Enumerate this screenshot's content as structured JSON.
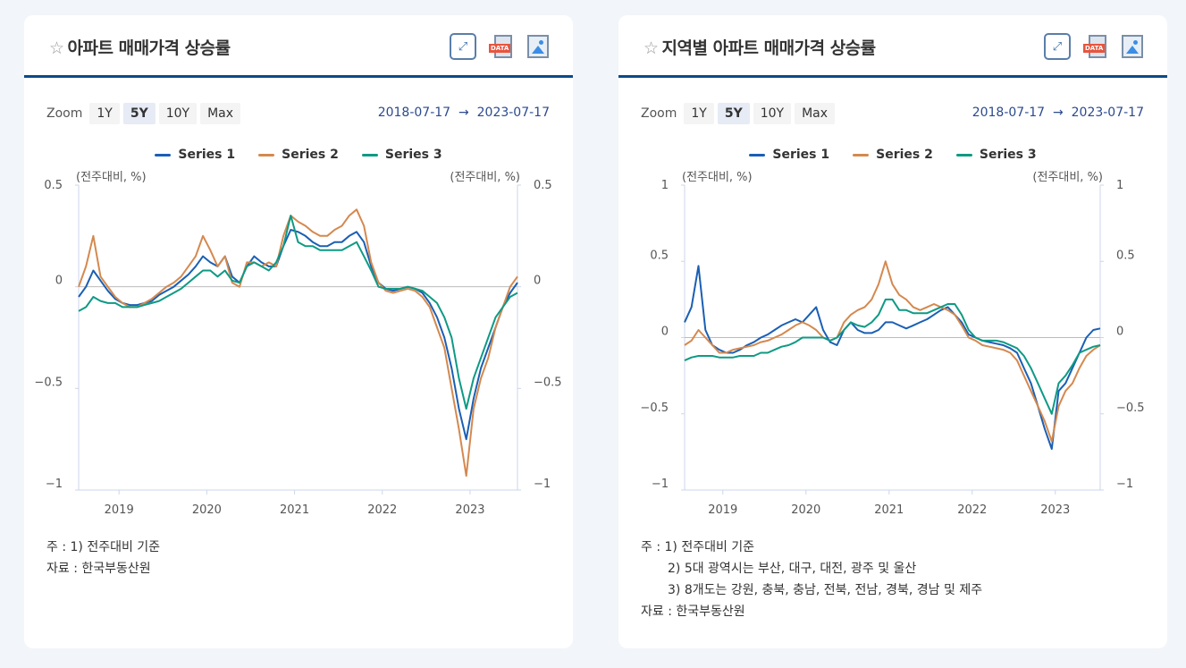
{
  "colors": {
    "series1": "#1a5fb4",
    "series2": "#d4894f",
    "series3": "#0e9a84",
    "accent": "#0b4a8a"
  },
  "zoom_label": "Zoom",
  "zoom_options": [
    "1Y",
    "5Y",
    "10Y",
    "Max"
  ],
  "zoom_selected": "5Y",
  "range_from": "2018-07-17",
  "range_arrow": "→",
  "range_to": "2023-07-17",
  "icons": [
    "star-icon",
    "fullscreen-icon",
    "data-download-icon",
    "image-download-icon"
  ],
  "charts": [
    {
      "title": "아파트 매매가격 상승률",
      "notes": [
        "주 : 1)  전주대비 기준"
      ],
      "source": "자료 :  한국부동산원",
      "chart_data": {
        "type": "line",
        "start": "2018-07",
        "freq": "monthly",
        "ylim": [
          -1,
          0.5
        ],
        "yticks": [
          0.5,
          0,
          -0.5,
          -1
        ],
        "ytick_labels": [
          "0.5",
          "0",
          "−0.5",
          "−1"
        ],
        "xticks": [
          "2019",
          "2020",
          "2021",
          "2022",
          "2023"
        ],
        "ylabel_left": "(전주대비, %)",
        "ylabel_right": "(전주대비, %)",
        "grid": "zero-line",
        "legend": "top-center",
        "series": [
          {
            "name": "Series 1",
            "values": [
              -0.05,
              0,
              0.08,
              0.03,
              -0.02,
              -0.06,
              -0.08,
              -0.09,
              -0.09,
              -0.08,
              -0.07,
              -0.04,
              -0.02,
              0,
              0.03,
              0.06,
              0.1,
              0.15,
              0.12,
              0.1,
              0.15,
              0.05,
              0.02,
              0.1,
              0.15,
              0.12,
              0.1,
              0.1,
              0.2,
              0.28,
              0.27,
              0.25,
              0.22,
              0.2,
              0.2,
              0.22,
              0.22,
              0.25,
              0.27,
              0.22,
              0.1,
              0.02,
              -0.01,
              -0.02,
              -0.01,
              0,
              -0.01,
              -0.03,
              -0.08,
              -0.15,
              -0.25,
              -0.4,
              -0.6,
              -0.75,
              -0.55,
              -0.4,
              -0.3,
              -0.2,
              -0.1,
              -0.03,
              0.02
            ]
          },
          {
            "name": "Series 2",
            "values": [
              0,
              0.1,
              0.25,
              0.05,
              0,
              -0.05,
              -0.08,
              -0.1,
              -0.1,
              -0.08,
              -0.06,
              -0.03,
              0,
              0.02,
              0.05,
              0.1,
              0.15,
              0.25,
              0.18,
              0.1,
              0.15,
              0.02,
              0,
              0.12,
              0.12,
              0.1,
              0.12,
              0.1,
              0.25,
              0.35,
              0.32,
              0.3,
              0.27,
              0.25,
              0.25,
              0.28,
              0.3,
              0.35,
              0.38,
              0.3,
              0.12,
              0.02,
              -0.02,
              -0.03,
              -0.02,
              -0.01,
              -0.02,
              -0.05,
              -0.1,
              -0.2,
              -0.3,
              -0.5,
              -0.7,
              -0.93,
              -0.6,
              -0.45,
              -0.35,
              -0.2,
              -0.1,
              0,
              0.05
            ]
          },
          {
            "name": "Series 3",
            "values": [
              -0.12,
              -0.1,
              -0.05,
              -0.07,
              -0.08,
              -0.08,
              -0.1,
              -0.1,
              -0.1,
              -0.09,
              -0.08,
              -0.07,
              -0.05,
              -0.03,
              -0.01,
              0.02,
              0.05,
              0.08,
              0.08,
              0.05,
              0.08,
              0.03,
              0.02,
              0.1,
              0.12,
              0.1,
              0.08,
              0.12,
              0.2,
              0.35,
              0.22,
              0.2,
              0.2,
              0.18,
              0.18,
              0.18,
              0.18,
              0.2,
              0.22,
              0.15,
              0.08,
              0,
              -0.01,
              -0.01,
              -0.01,
              0,
              -0.01,
              -0.02,
              -0.05,
              -0.08,
              -0.15,
              -0.25,
              -0.45,
              -0.6,
              -0.45,
              -0.35,
              -0.25,
              -0.15,
              -0.1,
              -0.05,
              -0.03
            ]
          }
        ]
      }
    },
    {
      "title": "지역별 아파트 매매가격 상승률",
      "notes": [
        "주 : 1)  전주대비 기준",
        "2)  5대 광역시는 부산, 대구, 대전, 광주 및 울산",
        "3)  8개도는 강원, 충북, 충남, 전북, 전남, 경북, 경남 및 제주"
      ],
      "source": "자료 :  한국부동산원",
      "chart_data": {
        "type": "line",
        "start": "2018-07",
        "freq": "monthly",
        "ylim": [
          -1,
          1
        ],
        "yticks": [
          1,
          0.5,
          0,
          -0.5,
          -1
        ],
        "ytick_labels": [
          "1",
          "0.5",
          "0",
          "−0.5",
          "−1"
        ],
        "xticks": [
          "2019",
          "2020",
          "2021",
          "2022",
          "2023"
        ],
        "ylabel_left": "(전주대비, %)",
        "ylabel_right": "(전주대비, %)",
        "grid": "zero-line",
        "legend": "top-center",
        "series": [
          {
            "name": "Series 1",
            "values": [
              0.1,
              0.2,
              0.47,
              0.05,
              -0.05,
              -0.08,
              -0.1,
              -0.1,
              -0.08,
              -0.05,
              -0.03,
              0,
              0.02,
              0.05,
              0.08,
              0.1,
              0.12,
              0.1,
              0.15,
              0.2,
              0.05,
              -0.03,
              -0.05,
              0.05,
              0.1,
              0.05,
              0.03,
              0.03,
              0.05,
              0.1,
              0.1,
              0.08,
              0.06,
              0.08,
              0.1,
              0.12,
              0.15,
              0.18,
              0.2,
              0.15,
              0.1,
              0.02,
              0,
              -0.02,
              -0.03,
              -0.04,
              -0.05,
              -0.07,
              -0.1,
              -0.2,
              -0.3,
              -0.45,
              -0.6,
              -0.73,
              -0.35,
              -0.3,
              -0.2,
              -0.1,
              0,
              0.05,
              0.06
            ]
          },
          {
            "name": "Series 2",
            "values": [
              -0.05,
              -0.02,
              0.05,
              0,
              -0.05,
              -0.1,
              -0.1,
              -0.08,
              -0.07,
              -0.06,
              -0.05,
              -0.03,
              -0.02,
              0,
              0.02,
              0.05,
              0.08,
              0.1,
              0.08,
              0.05,
              0,
              -0.02,
              0,
              0.1,
              0.15,
              0.18,
              0.2,
              0.25,
              0.35,
              0.5,
              0.35,
              0.28,
              0.25,
              0.2,
              0.18,
              0.2,
              0.22,
              0.2,
              0.18,
              0.15,
              0.08,
              0,
              -0.02,
              -0.05,
              -0.06,
              -0.07,
              -0.08,
              -0.1,
              -0.15,
              -0.25,
              -0.35,
              -0.45,
              -0.55,
              -0.68,
              -0.45,
              -0.35,
              -0.3,
              -0.2,
              -0.12,
              -0.08,
              -0.05
            ]
          },
          {
            "name": "Series 3",
            "values": [
              -0.15,
              -0.13,
              -0.12,
              -0.12,
              -0.12,
              -0.13,
              -0.13,
              -0.13,
              -0.12,
              -0.12,
              -0.12,
              -0.1,
              -0.1,
              -0.08,
              -0.06,
              -0.05,
              -0.03,
              0,
              0,
              0,
              0,
              -0.02,
              0,
              0.05,
              0.1,
              0.08,
              0.07,
              0.1,
              0.15,
              0.25,
              0.25,
              0.18,
              0.18,
              0.16,
              0.16,
              0.16,
              0.18,
              0.2,
              0.22,
              0.22,
              0.15,
              0.05,
              0,
              -0.02,
              -0.02,
              -0.02,
              -0.03,
              -0.05,
              -0.07,
              -0.12,
              -0.2,
              -0.3,
              -0.4,
              -0.5,
              -0.3,
              -0.25,
              -0.18,
              -0.1,
              -0.08,
              -0.06,
              -0.05
            ]
          }
        ]
      }
    }
  ]
}
